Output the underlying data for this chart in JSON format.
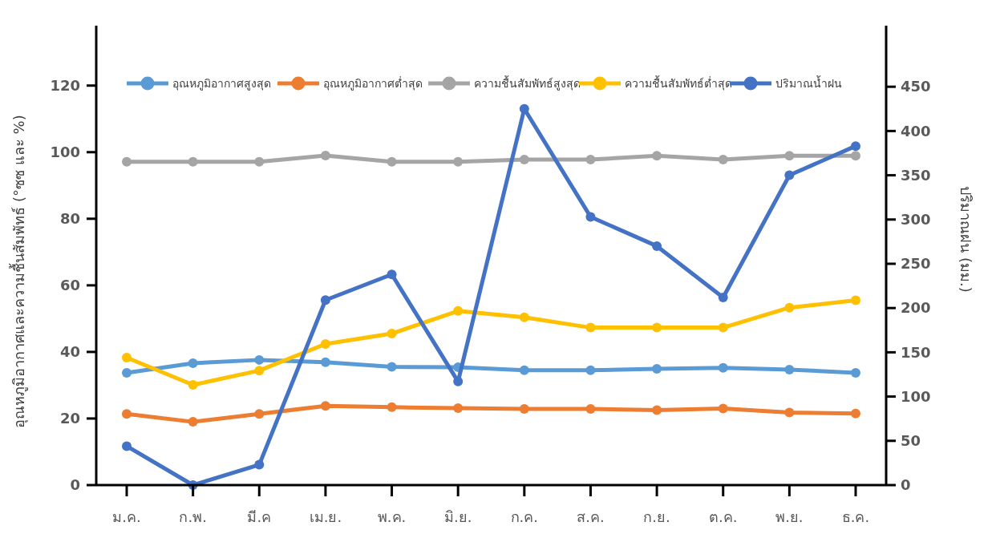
{
  "chart_data": {
    "type": "line",
    "categories": [
      "ม.ค.",
      "ก.พ.",
      "มี.ค",
      "เม.ย.",
      "พ.ค.",
      "มิ.ย.",
      "ก.ค.",
      "ส.ค.",
      "ก.ย.",
      "ต.ค.",
      "พ.ย.",
      "ธ.ค."
    ],
    "ylabel": "อุณหภูมิอากาศและความชื้นสัมพัทธ์ (°ซซ และ %)",
    "y2label": "ปริมาณฝน (มม.)",
    "ylim": [
      0,
      138
    ],
    "yticks": [
      0,
      20,
      40,
      60,
      80,
      100,
      120
    ],
    "y2lim": [
      0,
      519
    ],
    "y2ticks": [
      0,
      50,
      100,
      150,
      200,
      250,
      300,
      350,
      400,
      450
    ],
    "grid": false,
    "legend": "top",
    "marker": "circle",
    "line_style": "solid",
    "series": [
      {
        "name": "อุณหภูมิอากาศสูงสุด",
        "color": "#5b9bd5",
        "values": [
          33.7,
          36.6,
          37.6,
          36.9,
          35.5,
          35.4,
          34.5,
          34.5,
          34.9,
          35.2,
          34.7,
          33.7
        ]
      },
      {
        "name": "อุณหภูมิอากาศต่ำสุด",
        "color": "#ed7d31",
        "values": [
          21.4,
          19.0,
          21.4,
          23.8,
          23.4,
          23.1,
          22.9,
          22.9,
          22.5,
          23.0,
          21.8,
          21.5
        ]
      },
      {
        "name": "ความชื้นสัมพัทธ์สูงสุด",
        "color": "#a5a5a5",
        "values": [
          97.1,
          97.1,
          97.1,
          99,
          97.1,
          97.1,
          97.8,
          97.8,
          98.9,
          97.8,
          98.9,
          98.9
        ]
      },
      {
        "name": "ความชื้นสัมพัทธ์ต่ำสุด",
        "color": "#ffc000",
        "values": [
          38.3,
          30.1,
          34.4,
          42.4,
          45.5,
          52.3,
          50.4,
          47.3,
          47.3,
          47.3,
          53.3,
          55.5
        ]
      },
      {
        "name": "ปริมาณน้ำฝน",
        "color": "#4472c4",
        "axis": "y2",
        "values": [
          44,
          0,
          23,
          209,
          238,
          117,
          425,
          303,
          270,
          212,
          350,
          383
        ]
      }
    ]
  }
}
